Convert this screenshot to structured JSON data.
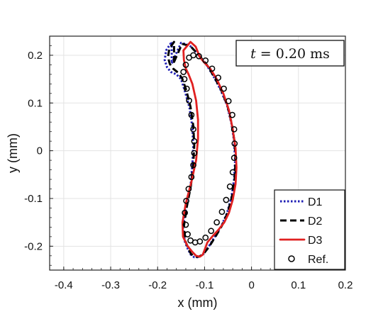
{
  "chart_data": {
    "type": "line",
    "title": "",
    "xlabel": "x (mm)",
    "ylabel": "y (mm)",
    "xlim": [
      -0.43,
      0.2
    ],
    "ylim": [
      -0.25,
      0.24
    ],
    "grid": true,
    "legend_position": "bottom-right",
    "annotation": {
      "italic": "t",
      "text": " = 0.20 ms",
      "position": "top-right"
    },
    "x_ticks": [
      {
        "value": -0.4,
        "label": "-0.4"
      },
      {
        "value": -0.3,
        "label": "-0.3"
      },
      {
        "value": -0.2,
        "label": "-0.2"
      },
      {
        "value": -0.1,
        "label": "-0.1"
      },
      {
        "value": 0,
        "label": "0"
      },
      {
        "value": 0.1,
        "label": "0.1"
      },
      {
        "value": 0.2,
        "label": "0.2"
      }
    ],
    "y_ticks": [
      {
        "value": -0.2,
        "label": "-0.2"
      },
      {
        "value": -0.1,
        "label": "-0.1"
      },
      {
        "value": 0,
        "label": "0"
      },
      {
        "value": 0.1,
        "label": "0.1"
      },
      {
        "value": 0.2,
        "label": "0.2"
      }
    ],
    "series": [
      {
        "name": "D1",
        "style": "dotted",
        "color": "#1f1fb4",
        "x": [
          -0.17,
          -0.15,
          -0.132,
          -0.115,
          -0.098,
          -0.082,
          -0.066,
          -0.052,
          -0.043,
          -0.037,
          -0.035,
          -0.037,
          -0.043,
          -0.052,
          -0.064,
          -0.078,
          -0.092,
          -0.104,
          -0.113,
          -0.122,
          -0.13,
          -0.136,
          -0.142,
          -0.146,
          -0.14,
          -0.13,
          -0.126,
          -0.124,
          -0.126,
          -0.132,
          -0.142,
          -0.15,
          -0.16,
          -0.172,
          -0.18,
          -0.185,
          -0.182,
          -0.17
        ],
        "y": [
          0.183,
          0.226,
          0.221,
          0.203,
          0.183,
          0.158,
          0.128,
          0.095,
          0.058,
          0.02,
          -0.02,
          -0.06,
          -0.098,
          -0.13,
          -0.157,
          -0.18,
          -0.202,
          -0.218,
          -0.223,
          -0.223,
          -0.217,
          -0.205,
          -0.19,
          -0.16,
          -0.12,
          -0.075,
          -0.03,
          0.01,
          0.05,
          0.09,
          0.125,
          0.15,
          0.16,
          0.165,
          0.175,
          0.19,
          0.21,
          0.228
        ]
      },
      {
        "name": "D2",
        "style": "dashed",
        "color": "#000000",
        "x": [
          -0.165,
          -0.148,
          -0.13,
          -0.113,
          -0.096,
          -0.08,
          -0.064,
          -0.051,
          -0.042,
          -0.036,
          -0.034,
          -0.036,
          -0.042,
          -0.051,
          -0.063,
          -0.077,
          -0.091,
          -0.103,
          -0.112,
          -0.121,
          -0.129,
          -0.135,
          -0.141,
          -0.144,
          -0.138,
          -0.129,
          -0.124,
          -0.122,
          -0.124,
          -0.13,
          -0.139,
          -0.148,
          -0.157,
          -0.167,
          -0.174,
          -0.178,
          -0.175,
          -0.165
        ],
        "y": [
          0.186,
          0.224,
          0.219,
          0.201,
          0.181,
          0.156,
          0.126,
          0.093,
          0.056,
          0.018,
          -0.02,
          -0.06,
          -0.098,
          -0.13,
          -0.157,
          -0.18,
          -0.202,
          -0.217,
          -0.222,
          -0.222,
          -0.216,
          -0.204,
          -0.189,
          -0.158,
          -0.118,
          -0.073,
          -0.028,
          0.012,
          0.052,
          0.092,
          0.127,
          0.152,
          0.164,
          0.172,
          0.182,
          0.196,
          0.214,
          0.228
        ]
      },
      {
        "name": "D3",
        "style": "solid",
        "color": "#e02020",
        "x": [
          -0.145,
          -0.13,
          -0.119,
          -0.11,
          -0.1,
          -0.088,
          -0.074,
          -0.06,
          -0.048,
          -0.04,
          -0.034,
          -0.032,
          -0.034,
          -0.04,
          -0.048,
          -0.058,
          -0.07,
          -0.082,
          -0.094,
          -0.1,
          -0.104,
          -0.11,
          -0.118,
          -0.126,
          -0.136,
          -0.146,
          -0.147,
          -0.14,
          -0.128,
          -0.118,
          -0.114,
          -0.114,
          -0.118,
          -0.126,
          -0.134,
          -0.14,
          -0.144,
          -0.145
        ],
        "y": [
          0.21,
          0.228,
          0.218,
          0.196,
          0.184,
          0.172,
          0.15,
          0.12,
          0.085,
          0.045,
          0.005,
          -0.035,
          -0.07,
          -0.103,
          -0.13,
          -0.15,
          -0.165,
          -0.178,
          -0.192,
          -0.208,
          -0.218,
          -0.222,
          -0.22,
          -0.212,
          -0.2,
          -0.18,
          -0.15,
          -0.11,
          -0.065,
          -0.02,
          0.025,
          0.065,
          0.105,
          0.14,
          0.16,
          0.172,
          0.19,
          0.21
        ]
      },
      {
        "name": "Ref.",
        "style": "circles",
        "color": "#000000",
        "x": [
          -0.14,
          -0.133,
          -0.124,
          -0.112,
          -0.098,
          -0.084,
          -0.071,
          -0.059,
          -0.049,
          -0.041,
          -0.037,
          -0.036,
          -0.037,
          -0.04,
          -0.046,
          -0.054,
          -0.063,
          -0.074,
          -0.086,
          -0.098,
          -0.11,
          -0.12,
          -0.13,
          -0.136,
          -0.14,
          -0.142,
          -0.139,
          -0.134,
          -0.128,
          -0.124,
          -0.122,
          -0.122,
          -0.124,
          -0.128,
          -0.133,
          -0.138,
          -0.143,
          -0.145
        ],
        "y": [
          0.18,
          0.195,
          0.2,
          0.198,
          0.189,
          0.172,
          0.153,
          0.13,
          0.104,
          0.075,
          0.045,
          0.015,
          -0.015,
          -0.045,
          -0.075,
          -0.103,
          -0.128,
          -0.15,
          -0.168,
          -0.182,
          -0.19,
          -0.192,
          -0.188,
          -0.175,
          -0.155,
          -0.13,
          -0.105,
          -0.08,
          -0.055,
          -0.03,
          -0.005,
          0.02,
          0.045,
          0.075,
          0.105,
          0.13,
          0.15,
          0.165
        ]
      }
    ]
  }
}
